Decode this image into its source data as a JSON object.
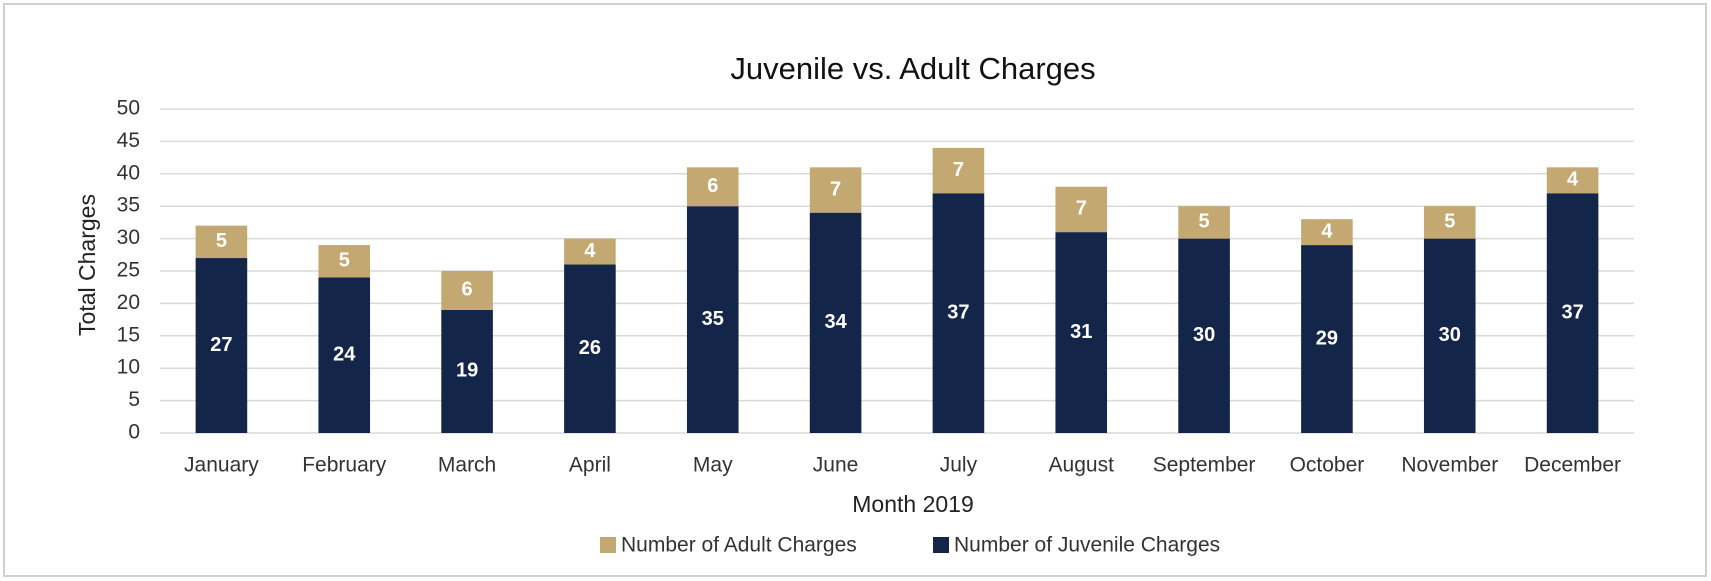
{
  "chart_data": {
    "type": "stacked_bar",
    "title": "Juvenile vs. Adult Charges",
    "x_label": "Month 2019",
    "y_label": "Total Charges",
    "categories": [
      "January",
      "February",
      "March",
      "April",
      "May",
      "June",
      "July",
      "August",
      "September",
      "October",
      "November",
      "December"
    ],
    "series": [
      {
        "name": "Number of Adult Charges",
        "color": "#c4a872",
        "values": [
          5,
          5,
          6,
          4,
          6,
          7,
          7,
          7,
          5,
          4,
          5,
          4
        ]
      },
      {
        "name": "Number of Juvenile Charges",
        "color": "#14254a",
        "values": [
          27,
          24,
          19,
          26,
          35,
          34,
          37,
          31,
          30,
          29,
          30,
          37
        ]
      }
    ],
    "ylim": [
      0,
      50
    ],
    "yticks": [
      0,
      5,
      10,
      15,
      20,
      25,
      30,
      35,
      40,
      45,
      50
    ],
    "grid": true,
    "legend": "bottom"
  }
}
